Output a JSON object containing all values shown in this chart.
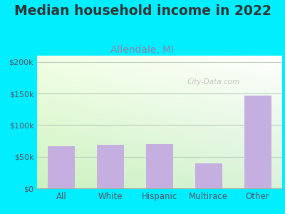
{
  "title": "Median household income in 2022",
  "subtitle": "Allendale, MI",
  "categories": [
    "All",
    "White",
    "Hispanic",
    "Multirace",
    "Other"
  ],
  "values": [
    67000,
    68500,
    70500,
    40000,
    147000
  ],
  "bar_color": "#c5aee0",
  "title_fontsize": 13.5,
  "title_color": "#333333",
  "subtitle_fontsize": 10,
  "subtitle_color": "#8888aa",
  "tick_color": "#555566",
  "background_outer": "#00eeff",
  "ylim": [
    0,
    210000
  ],
  "yticks": [
    0,
    50000,
    100000,
    150000,
    200000
  ],
  "ytick_labels": [
    "$0",
    "$50k",
    "$100k",
    "$150k",
    "$200k"
  ],
  "watermark": "City-Data.com",
  "grid_color": "#bbccbb",
  "bottom_spine_color": "#aaaaaa"
}
